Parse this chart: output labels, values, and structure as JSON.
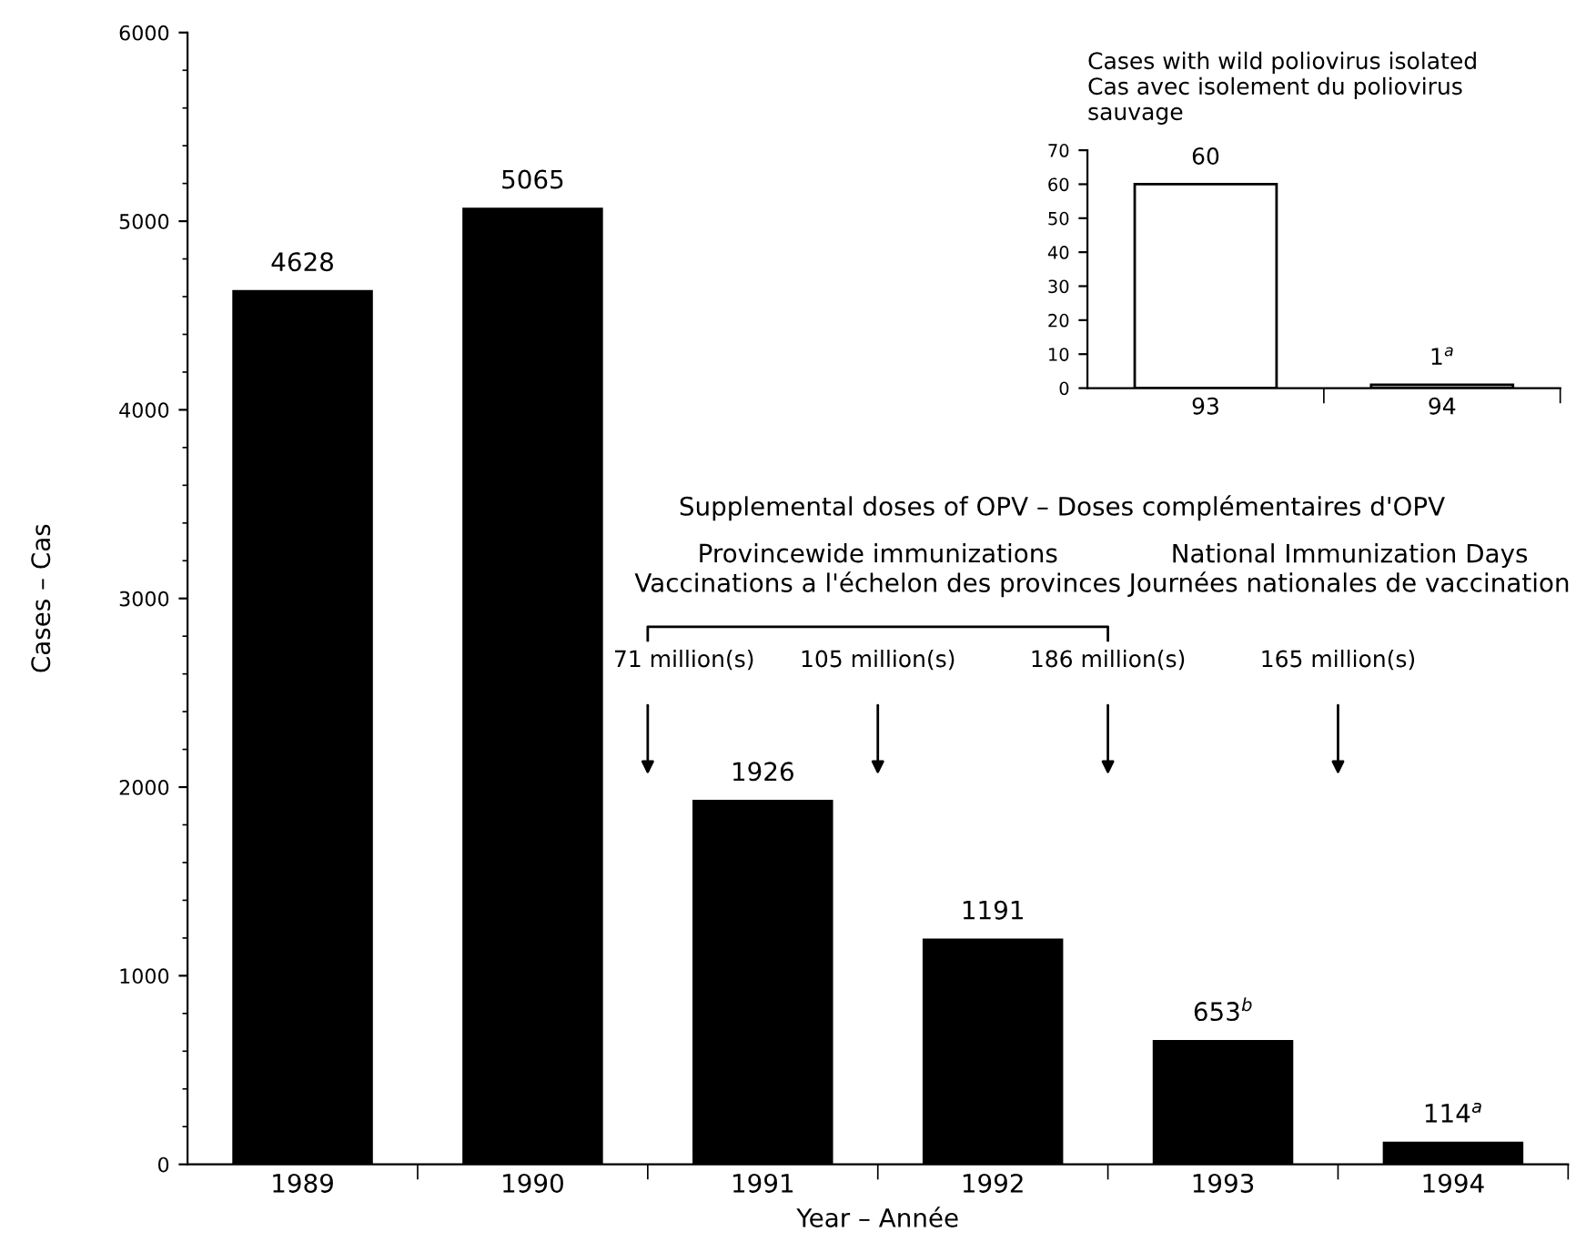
{
  "chart_data": [
    {
      "type": "bar",
      "xlabel": "Year – Année",
      "ylabel": "Cases – Cas",
      "categories": [
        "1989",
        "1990",
        "1991",
        "1992",
        "1993",
        "1994"
      ],
      "values": [
        4628,
        5065,
        1926,
        1191,
        653,
        114
      ],
      "value_labels": [
        "4628",
        "5065",
        "1926",
        "1191",
        "653$^{b}$",
        "114$^{a}$"
      ],
      "color": "#000000",
      "ylim": [
        0,
        6000
      ],
      "yticks": [
        0,
        1000,
        2000,
        3000,
        4000,
        5000,
        6000
      ],
      "grid": false,
      "annotations": [
        "Supplemental doses of OPV – Doses complémentaires d'OPV",
        "Provincewide immunizations\nVaccinations a l'échelon des provinces",
        "National Immunization Days\nJournées nationales de vaccination",
        "71 million(s)",
        "105 million(s)",
        "186 million(s)",
        "165 million(s)"
      ]
    },
    {
      "type": "bar",
      "title": "Cases with wild poliovirus isolated\nCas avec isolement du poliovirus\nsauvage",
      "categories": [
        "93",
        "94"
      ],
      "values": [
        60,
        1
      ],
      "value_labels": [
        "60",
        "1$^{a}$"
      ],
      "colors": [
        "#ffffff",
        "#d0d0d0"
      ],
      "ylim": [
        0,
        70
      ],
      "yticks": [
        0,
        10,
        20,
        30,
        40,
        50,
        60,
        70
      ],
      "grid": false
    }
  ]
}
